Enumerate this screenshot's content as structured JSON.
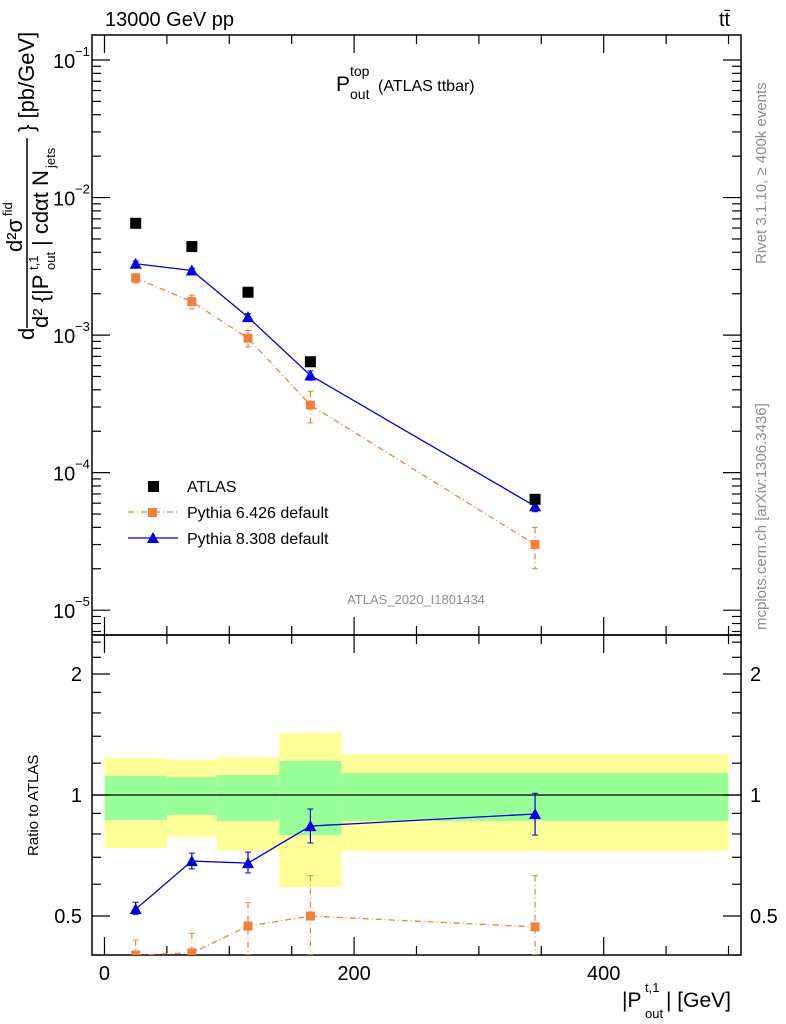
{
  "header": {
    "energy": "13000 GeV pp",
    "process": "tt̄"
  },
  "side_labels": {
    "rivet": "Rivet 3.1.10, ≥ 400k events",
    "mcplots": "mcplots.cern.ch [arXiv:1306.3436]"
  },
  "analysis_id": "ATLAS_2020_I1801434",
  "chart_data": [
    {
      "type": "scatter",
      "title_main": "P",
      "title_sup": "top",
      "title_sub": "out",
      "title_rest": "(ATLAS ttbar)",
      "ylabel": "d²σ^fid / d²{|P_out^t,1| cdot N_jets} [pb/GeV]",
      "ylabel_parts": {
        "d": "d",
        "num": "d²σ",
        "num_sup": "fid",
        "den": "d² {|P",
        "den_sup": "t,1",
        "den_sub": "out",
        "den_rest": "| cdαt N",
        "den_sub2": "jets",
        "unit": "} [pb/GeV]"
      },
      "yscale": "log",
      "ylim": [
        6.6e-06,
        0.152
      ],
      "xlim": [
        -10,
        510
      ],
      "ytick_labels": [
        {
          "base": "10",
          "exp": "−1",
          "v": 0.1
        },
        {
          "base": "10",
          "exp": "−2",
          "v": 0.01
        },
        {
          "base": "10",
          "exp": "−3",
          "v": 0.001
        },
        {
          "base": "10",
          "exp": "−4",
          "v": 0.0001
        },
        {
          "base": "10",
          "exp": "−5",
          "v": 1e-05
        }
      ],
      "legend_position": "bottom-left",
      "x": [
        25,
        70,
        115,
        165,
        345
      ],
      "series": [
        {
          "name": "ATLAS",
          "color": "#000000",
          "marker": "square",
          "line": "none",
          "values": [
            0.0065,
            0.0044,
            0.00205,
            0.00064,
            6.4e-05
          ],
          "err": [
            0.0001,
            7e-05,
            3e-05,
            1e-05,
            2e-06
          ]
        },
        {
          "name": "Pythia 6.426 default",
          "color": "#f47f3a",
          "marker": "square",
          "line": "dashdot",
          "values": [
            0.0026,
            0.00175,
            0.00095,
            0.00031,
            3e-05
          ],
          "err": [
            0.0002,
            0.0002,
            0.00013,
            8e-05,
            1e-05
          ]
        },
        {
          "name": "Pythia 8.308 default",
          "color": "#0000dd",
          "marker": "triangle",
          "line": "solid",
          "values": [
            0.0033,
            0.00295,
            0.00135,
            0.00051,
            5.7e-05
          ],
          "err": [
            0.00015,
            0.0001,
            8e-05,
            4e-05,
            5e-06
          ]
        }
      ]
    },
    {
      "type": "scatter",
      "ylabel": "Ratio to ATLAS",
      "xlabel": "|P",
      "xlabel_sup": "t,1",
      "xlabel_sub": "out",
      "xlabel_rest": "| [GeV]",
      "yscale": "log",
      "ylim": [
        0.4,
        2.5
      ],
      "xlim": [
        -10,
        510
      ],
      "xtick_labels": [
        "0",
        "200",
        "400"
      ],
      "ytick_labels": [
        "2",
        "1",
        "0.5"
      ],
      "bins": [
        [
          0,
          50
        ],
        [
          50,
          90
        ],
        [
          90,
          140
        ],
        [
          140,
          190
        ],
        [
          190,
          500
        ]
      ],
      "band_stat_syst": {
        "color": "#ffff99",
        "lo": [
          0.738,
          0.786,
          0.726,
          0.59,
          0.726
        ],
        "hi": [
          1.236,
          1.222,
          1.243,
          1.426,
          1.265
        ]
      },
      "band_stat": {
        "color": "#99ff99",
        "lo": [
          0.866,
          0.892,
          0.862,
          0.795,
          0.862
        ],
        "hi": [
          1.115,
          1.108,
          1.121,
          1.215,
          1.134
        ]
      },
      "x": [
        25,
        70,
        115,
        165,
        345
      ],
      "series": [
        {
          "name": "Pythia 6.426 default",
          "color": "#f47f3a",
          "marker": "square",
          "line": "dashdot",
          "values": [
            0.4,
            0.405,
            0.472,
            0.5,
            0.47
          ],
          "lo": [
            0.36,
            0.36,
            0.36,
            0.36,
            0.36
          ],
          "hi": [
            0.436,
            0.453,
            0.54,
            0.63,
            0.63
          ]
        },
        {
          "name": "Pythia 8.308 default",
          "color": "#0000dd",
          "marker": "triangle",
          "line": "solid",
          "values": [
            0.52,
            0.685,
            0.677,
            0.837,
            0.897
          ],
          "lo": [
            0.505,
            0.655,
            0.64,
            0.76,
            0.795
          ],
          "hi": [
            0.541,
            0.717,
            0.721,
            0.923,
            1.01
          ]
        }
      ]
    }
  ]
}
